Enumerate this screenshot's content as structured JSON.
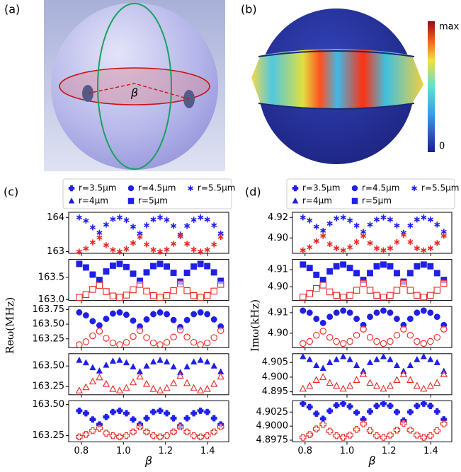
{
  "figure": {
    "panel_a": "(a)",
    "beta": "β",
    "panel_b": "(b)",
    "colorbar_max": "max",
    "colorbar_min": "0"
  },
  "chart_data": [
    {
      "type": "scatter",
      "panel": "(c)",
      "xlabel": "β",
      "ylabel": "Reω(MHz)",
      "x": [
        0.79,
        0.822,
        0.854,
        0.886,
        0.918,
        0.95,
        0.982,
        1.014,
        1.046,
        1.078,
        1.11,
        1.142,
        1.174,
        1.206,
        1.238,
        1.27,
        1.302,
        1.334,
        1.366,
        1.398,
        1.43,
        1.462
      ],
      "xlim": [
        0.74,
        1.5
      ],
      "xticks": [
        0.8,
        {
          "value": 1,
          "label": "1.0"
        },
        1.2,
        1.4
      ],
      "subplots": [
        {
          "name": "r=5.5μm",
          "marker": "star",
          "ylim": [
            162.95,
            164.15
          ],
          "yticks": [
            163,
            164
          ],
          "series": [
            {
              "color": "#1f1fe8",
              "values": [
                164.0,
                163.9,
                163.71,
                163.55,
                163.79,
                163.95,
                164.0,
                163.92,
                163.73,
                163.53,
                163.77,
                163.94,
                164.0,
                163.93,
                163.75,
                163.5,
                163.75,
                163.93,
                164.0,
                163.94,
                163.77,
                163.53
              ]
            },
            {
              "color": "#e8281f",
              "values": [
                163.0,
                163.09,
                163.27,
                163.41,
                163.19,
                163.05,
                163.0,
                163.08,
                163.25,
                163.43,
                163.21,
                163.05,
                163.0,
                163.06,
                163.23,
                163.45,
                163.23,
                163.06,
                163.0,
                163.05,
                163.21,
                163.43
              ]
            }
          ]
        },
        {
          "name": "r=5μm",
          "marker": "square",
          "ylim": [
            162.98,
            163.9
          ],
          "yticks": [
            {
              "value": 163,
              "label": "163.0"
            },
            163.5
          ],
          "series": [
            {
              "color": "#1f1fe8",
              "values": [
                163.8,
                163.72,
                163.56,
                163.44,
                163.63,
                163.76,
                163.8,
                163.73,
                163.58,
                163.42,
                163.61,
                163.75,
                163.8,
                163.74,
                163.6,
                163.4,
                163.6,
                163.74,
                163.8,
                163.75,
                163.61,
                163.42
              ]
            },
            {
              "color": "#e8281f",
              "values": [
                163.05,
                163.11,
                163.23,
                163.32,
                163.18,
                163.08,
                163.05,
                163.1,
                163.22,
                163.34,
                163.19,
                163.09,
                163.05,
                163.09,
                163.2,
                163.35,
                163.2,
                163.09,
                163.05,
                163.09,
                163.19,
                163.34
              ]
            }
          ]
        },
        {
          "name": "r=4.5μm",
          "marker": "circle",
          "ylim": [
            163.1,
            163.8
          ],
          "yticks": [
            {
              "value": 163.25,
              "label": "163.25"
            },
            {
              "value": 163.5,
              "label": "163.50"
            },
            {
              "value": 163.75,
              "label": "163.75"
            }
          ],
          "series": [
            {
              "color": "#1f1fe8",
              "values": [
                163.7,
                163.65,
                163.55,
                163.48,
                163.59,
                163.68,
                163.7,
                163.66,
                163.56,
                163.46,
                163.58,
                163.67,
                163.7,
                163.67,
                163.57,
                163.45,
                163.57,
                163.67,
                163.7,
                163.67,
                163.58,
                163.46
              ]
            },
            {
              "color": "#e8281f",
              "values": [
                163.15,
                163.2,
                163.3,
                163.38,
                163.26,
                163.18,
                163.15,
                163.19,
                163.29,
                163.39,
                163.27,
                163.18,
                163.15,
                163.19,
                163.28,
                163.4,
                163.28,
                163.19,
                163.15,
                163.18,
                163.27,
                163.39
              ]
            }
          ]
        },
        {
          "name": "r=4μm",
          "marker": "triangle",
          "ylim": [
            163.15,
            163.65
          ],
          "yticks": [
            {
              "value": 163.25,
              "label": "163.25"
            },
            {
              "value": 163.5,
              "label": "163.50"
            }
          ],
          "series": [
            {
              "color": "#1f1fe8",
              "values": [
                163.57,
                163.54,
                163.48,
                163.44,
                163.51,
                163.56,
                163.57,
                163.54,
                163.49,
                163.43,
                163.5,
                163.55,
                163.57,
                163.55,
                163.49,
                163.42,
                163.49,
                163.55,
                163.57,
                163.55,
                163.5,
                163.43
              ]
            },
            {
              "color": "#e8281f",
              "values": [
                163.2,
                163.24,
                163.31,
                163.36,
                163.28,
                163.22,
                163.2,
                163.23,
                163.3,
                163.37,
                163.28,
                163.22,
                163.2,
                163.23,
                163.29,
                163.38,
                163.29,
                163.23,
                163.2,
                163.22,
                163.28,
                163.37
              ]
            }
          ]
        },
        {
          "name": "r=3.5μm",
          "marker": "plus",
          "ylim": [
            163.2,
            163.53
          ],
          "yticks": [
            {
              "value": 163.25,
              "label": "163.25"
            },
            {
              "value": 163.5,
              "label": "163.50"
            }
          ],
          "series": [
            {
              "color": "#1f1fe8",
              "values": [
                163.45,
                163.43,
                163.38,
                163.34,
                163.4,
                163.44,
                163.45,
                163.43,
                163.38,
                163.34,
                163.39,
                163.44,
                163.45,
                163.43,
                163.39,
                163.33,
                163.39,
                163.43,
                163.45,
                163.44,
                163.39,
                163.34
              ]
            },
            {
              "color": "#e8281f",
              "values": [
                163.24,
                163.26,
                163.29,
                163.31,
                163.27,
                163.25,
                163.24,
                163.25,
                163.28,
                163.32,
                163.28,
                163.25,
                163.24,
                163.25,
                163.28,
                163.32,
                163.28,
                163.25,
                163.24,
                163.25,
                163.28,
                163.32
              ]
            }
          ]
        }
      ]
    },
    {
      "type": "scatter",
      "panel": "(d)",
      "xlabel": "β",
      "ylabel": "Imω(kHz)",
      "x": [
        0.79,
        0.822,
        0.854,
        0.886,
        0.918,
        0.95,
        0.982,
        1.014,
        1.046,
        1.078,
        1.11,
        1.142,
        1.174,
        1.206,
        1.238,
        1.27,
        1.302,
        1.334,
        1.366,
        1.398,
        1.43,
        1.462
      ],
      "xlim": [
        0.74,
        1.5
      ],
      "xticks": [
        0.8,
        {
          "value": 1,
          "label": "1.0"
        },
        1.2,
        1.4
      ],
      "subplots": [
        {
          "name": "r=5.5μm",
          "marker": "star",
          "ylim": [
            4.885,
            4.925
          ],
          "yticks": [
            {
              "value": 4.9,
              "label": "4.90"
            },
            4.92
          ],
          "series": [
            {
              "color": "#1f1fe8",
              "values": [
                4.92,
                4.917,
                4.911,
                4.907,
                4.914,
                4.919,
                4.92,
                4.917,
                4.912,
                4.906,
                4.913,
                4.918,
                4.92,
                4.918,
                4.912,
                4.905,
                4.912,
                4.918,
                4.92,
                4.918,
                4.913,
                4.906
              ]
            },
            {
              "color": "#e8281f",
              "values": [
                4.888,
                4.891,
                4.897,
                4.902,
                4.894,
                4.89,
                4.888,
                4.891,
                4.896,
                4.902,
                4.895,
                4.89,
                4.888,
                4.89,
                4.896,
                4.903,
                4.896,
                4.89,
                4.888,
                4.89,
                4.895,
                4.902
              ]
            }
          ]
        },
        {
          "name": "r=5μm",
          "marker": "square",
          "ylim": [
            4.892,
            4.916
          ],
          "yticks": [
            {
              "value": 4.9,
              "label": "4.90"
            },
            4.91
          ],
          "series": [
            {
              "color": "#1f1fe8",
              "values": [
                4.913,
                4.911,
                4.907,
                4.904,
                4.909,
                4.912,
                4.913,
                4.911,
                4.908,
                4.904,
                4.908,
                4.912,
                4.913,
                4.912,
                4.908,
                4.903,
                4.908,
                4.912,
                4.913,
                4.912,
                4.908,
                4.904
              ]
            },
            {
              "color": "#e8281f",
              "values": [
                4.894,
                4.896,
                4.899,
                4.901,
                4.897,
                4.895,
                4.894,
                4.895,
                4.898,
                4.902,
                4.898,
                4.895,
                4.894,
                4.895,
                4.898,
                4.902,
                4.898,
                4.895,
                4.894,
                4.895,
                4.898,
                4.902
              ]
            }
          ]
        },
        {
          "name": "r=4.5μm",
          "marker": "circle",
          "ylim": [
            4.893,
            4.913
          ],
          "yticks": [
            {
              "value": 4.9,
              "label": "4.90"
            },
            4.91
          ],
          "series": [
            {
              "color": "#1f1fe8",
              "values": [
                4.911,
                4.91,
                4.907,
                4.905,
                4.908,
                4.91,
                4.911,
                4.91,
                4.907,
                4.904,
                4.908,
                4.91,
                4.911,
                4.91,
                4.907,
                4.904,
                4.907,
                4.91,
                4.911,
                4.91,
                4.908,
                4.904
              ]
            },
            {
              "color": "#e8281f",
              "values": [
                4.895,
                4.896,
                4.899,
                4.901,
                4.898,
                4.896,
                4.895,
                4.896,
                4.899,
                4.902,
                4.898,
                4.896,
                4.895,
                4.896,
                4.899,
                4.902,
                4.899,
                4.896,
                4.895,
                4.896,
                4.898,
                4.902
              ]
            }
          ]
        },
        {
          "name": "r=4μm",
          "marker": "triangle",
          "ylim": [
            4.894,
            4.908
          ],
          "yticks": [
            4.895,
            {
              "value": 4.9,
              "label": "4.900"
            },
            4.905
          ],
          "series": [
            {
              "color": "#1f1fe8",
              "values": [
                4.907,
                4.906,
                4.904,
                4.903,
                4.905,
                4.906,
                4.907,
                4.906,
                4.904,
                4.902,
                4.905,
                4.906,
                4.907,
                4.906,
                4.904,
                4.902,
                4.904,
                4.906,
                4.907,
                4.906,
                4.905,
                4.902
              ]
            },
            {
              "color": "#e8281f",
              "values": [
                4.896,
                4.897,
                4.899,
                4.9,
                4.898,
                4.897,
                4.896,
                4.897,
                4.899,
                4.901,
                4.898,
                4.897,
                4.896,
                4.897,
                4.899,
                4.901,
                4.899,
                4.897,
                4.896,
                4.897,
                4.898,
                4.901
              ]
            }
          ]
        },
        {
          "name": "r=3.5μm",
          "marker": "plus",
          "ylim": [
            4.8972,
            4.9045
          ],
          "yticks": [
            4.8975,
            {
              "value": 4.9,
              "label": "4.9000"
            },
            4.9025
          ],
          "series": [
            {
              "color": "#1f1fe8",
              "values": [
                4.904,
                4.9034,
                4.9022,
                4.9013,
                4.9027,
                4.9037,
                4.904,
                4.9035,
                4.9024,
                4.9012,
                4.9026,
                4.9036,
                4.904,
                4.9036,
                4.9025,
                4.901,
                4.9025,
                4.9036,
                4.904,
                4.9036,
                4.9026,
                4.9012
              ]
            },
            {
              "color": "#e8281f",
              "values": [
                4.898,
                4.8985,
                4.8995,
                4.9003,
                4.8991,
                4.8983,
                4.898,
                4.8984,
                4.8994,
                4.9004,
                4.8992,
                4.8983,
                4.898,
                4.8984,
                4.8993,
                4.9005,
                4.8993,
                4.8984,
                4.898,
                4.8983,
                4.8992,
                4.9004
              ]
            }
          ]
        }
      ]
    }
  ]
}
